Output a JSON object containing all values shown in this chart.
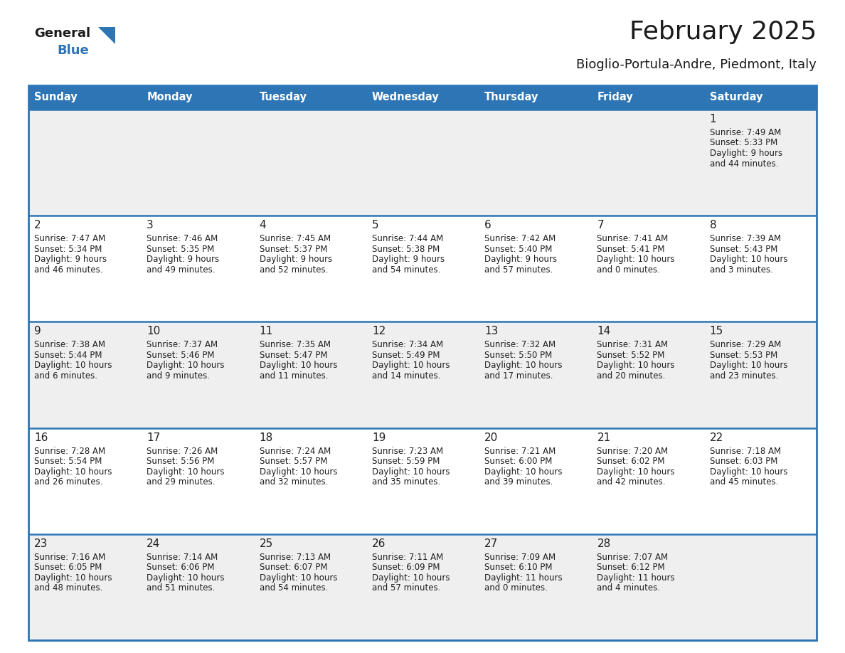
{
  "title": "February 2025",
  "subtitle": "Bioglio-Portula-Andre, Piedmont, Italy",
  "days_of_week": [
    "Sunday",
    "Monday",
    "Tuesday",
    "Wednesday",
    "Thursday",
    "Friday",
    "Saturday"
  ],
  "header_bg": "#2e75b6",
  "header_text": "#ffffff",
  "row_bg_light": "#efefef",
  "row_bg_white": "#ffffff",
  "separator_color": "#2e75b6",
  "day_number_color": "#1f1f1f",
  "cell_text_color": "#1f1f1f",
  "title_color": "#1a1a1a",
  "subtitle_color": "#1a1a1a",
  "logo_general_color": "#1a1a1a",
  "logo_blue_color": "#2e75b6",
  "calendar_data": [
    [
      null,
      null,
      null,
      null,
      null,
      null,
      {
        "day": "1",
        "sunrise": "7:49 AM",
        "sunset": "5:33 PM",
        "daylight_line1": "9 hours",
        "daylight_line2": "and 44 minutes."
      }
    ],
    [
      {
        "day": "2",
        "sunrise": "7:47 AM",
        "sunset": "5:34 PM",
        "daylight_line1": "9 hours",
        "daylight_line2": "and 46 minutes."
      },
      {
        "day": "3",
        "sunrise": "7:46 AM",
        "sunset": "5:35 PM",
        "daylight_line1": "9 hours",
        "daylight_line2": "and 49 minutes."
      },
      {
        "day": "4",
        "sunrise": "7:45 AM",
        "sunset": "5:37 PM",
        "daylight_line1": "9 hours",
        "daylight_line2": "and 52 minutes."
      },
      {
        "day": "5",
        "sunrise": "7:44 AM",
        "sunset": "5:38 PM",
        "daylight_line1": "9 hours",
        "daylight_line2": "and 54 minutes."
      },
      {
        "day": "6",
        "sunrise": "7:42 AM",
        "sunset": "5:40 PM",
        "daylight_line1": "9 hours",
        "daylight_line2": "and 57 minutes."
      },
      {
        "day": "7",
        "sunrise": "7:41 AM",
        "sunset": "5:41 PM",
        "daylight_line1": "10 hours",
        "daylight_line2": "and 0 minutes."
      },
      {
        "day": "8",
        "sunrise": "7:39 AM",
        "sunset": "5:43 PM",
        "daylight_line1": "10 hours",
        "daylight_line2": "and 3 minutes."
      }
    ],
    [
      {
        "day": "9",
        "sunrise": "7:38 AM",
        "sunset": "5:44 PM",
        "daylight_line1": "10 hours",
        "daylight_line2": "and 6 minutes."
      },
      {
        "day": "10",
        "sunrise": "7:37 AM",
        "sunset": "5:46 PM",
        "daylight_line1": "10 hours",
        "daylight_line2": "and 9 minutes."
      },
      {
        "day": "11",
        "sunrise": "7:35 AM",
        "sunset": "5:47 PM",
        "daylight_line1": "10 hours",
        "daylight_line2": "and 11 minutes."
      },
      {
        "day": "12",
        "sunrise": "7:34 AM",
        "sunset": "5:49 PM",
        "daylight_line1": "10 hours",
        "daylight_line2": "and 14 minutes."
      },
      {
        "day": "13",
        "sunrise": "7:32 AM",
        "sunset": "5:50 PM",
        "daylight_line1": "10 hours",
        "daylight_line2": "and 17 minutes."
      },
      {
        "day": "14",
        "sunrise": "7:31 AM",
        "sunset": "5:52 PM",
        "daylight_line1": "10 hours",
        "daylight_line2": "and 20 minutes."
      },
      {
        "day": "15",
        "sunrise": "7:29 AM",
        "sunset": "5:53 PM",
        "daylight_line1": "10 hours",
        "daylight_line2": "and 23 minutes."
      }
    ],
    [
      {
        "day": "16",
        "sunrise": "7:28 AM",
        "sunset": "5:54 PM",
        "daylight_line1": "10 hours",
        "daylight_line2": "and 26 minutes."
      },
      {
        "day": "17",
        "sunrise": "7:26 AM",
        "sunset": "5:56 PM",
        "daylight_line1": "10 hours",
        "daylight_line2": "and 29 minutes."
      },
      {
        "day": "18",
        "sunrise": "7:24 AM",
        "sunset": "5:57 PM",
        "daylight_line1": "10 hours",
        "daylight_line2": "and 32 minutes."
      },
      {
        "day": "19",
        "sunrise": "7:23 AM",
        "sunset": "5:59 PM",
        "daylight_line1": "10 hours",
        "daylight_line2": "and 35 minutes."
      },
      {
        "day": "20",
        "sunrise": "7:21 AM",
        "sunset": "6:00 PM",
        "daylight_line1": "10 hours",
        "daylight_line2": "and 39 minutes."
      },
      {
        "day": "21",
        "sunrise": "7:20 AM",
        "sunset": "6:02 PM",
        "daylight_line1": "10 hours",
        "daylight_line2": "and 42 minutes."
      },
      {
        "day": "22",
        "sunrise": "7:18 AM",
        "sunset": "6:03 PM",
        "daylight_line1": "10 hours",
        "daylight_line2": "and 45 minutes."
      }
    ],
    [
      {
        "day": "23",
        "sunrise": "7:16 AM",
        "sunset": "6:05 PM",
        "daylight_line1": "10 hours",
        "daylight_line2": "and 48 minutes."
      },
      {
        "day": "24",
        "sunrise": "7:14 AM",
        "sunset": "6:06 PM",
        "daylight_line1": "10 hours",
        "daylight_line2": "and 51 minutes."
      },
      {
        "day": "25",
        "sunrise": "7:13 AM",
        "sunset": "6:07 PM",
        "daylight_line1": "10 hours",
        "daylight_line2": "and 54 minutes."
      },
      {
        "day": "26",
        "sunrise": "7:11 AM",
        "sunset": "6:09 PM",
        "daylight_line1": "10 hours",
        "daylight_line2": "and 57 minutes."
      },
      {
        "day": "27",
        "sunrise": "7:09 AM",
        "sunset": "6:10 PM",
        "daylight_line1": "11 hours",
        "daylight_line2": "and 0 minutes."
      },
      {
        "day": "28",
        "sunrise": "7:07 AM",
        "sunset": "6:12 PM",
        "daylight_line1": "11 hours",
        "daylight_line2": "and 4 minutes."
      },
      null
    ]
  ],
  "fig_width": 11.88,
  "fig_height": 9.18,
  "dpi": 100,
  "header_fontsize": 10.5,
  "day_num_fontsize": 11,
  "cell_fontsize": 8.5,
  "title_fontsize": 26,
  "subtitle_fontsize": 13
}
